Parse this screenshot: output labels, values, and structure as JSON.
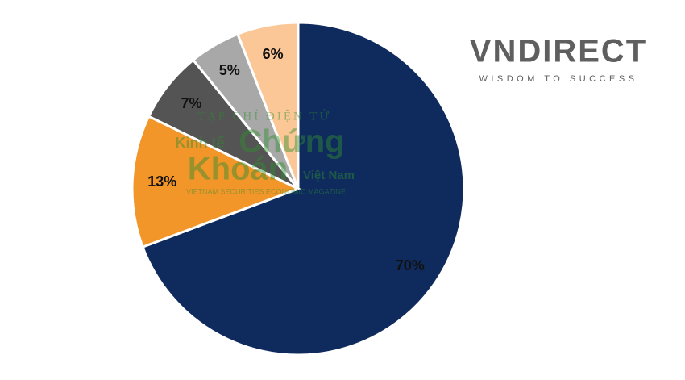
{
  "chart_data": {
    "type": "pie",
    "values": [
      70,
      13,
      7,
      5,
      6
    ],
    "value_labels": [
      "70%",
      "13%",
      "7%",
      "5%",
      "6%"
    ],
    "colors": [
      "#0f2b5e",
      "#f2962a",
      "#545454",
      "#a8a8a8",
      "#fcc796"
    ]
  },
  "logo": {
    "name": "VNDIRECT",
    "tagline": "WISDOM TO SUCCESS"
  },
  "watermark": {
    "line1": "TẠP CHÍ ĐIỆN TỬ",
    "word1": "Kinh tế",
    "word2": "Chứng",
    "word3": "Khoán",
    "word4": "Việt Nam",
    "footer": "VIETNAM SECURITIES ECONOMIC MAGAZINE"
  }
}
